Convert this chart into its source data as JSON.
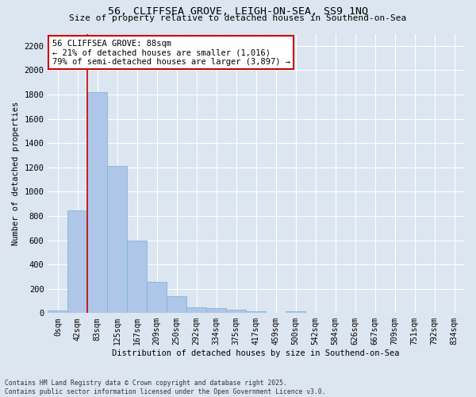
{
  "title_line1": "56, CLIFFSEA GROVE, LEIGH-ON-SEA, SS9 1NQ",
  "title_line2": "Size of property relative to detached houses in Southend-on-Sea",
  "xlabel": "Distribution of detached houses by size in Southend-on-Sea",
  "ylabel": "Number of detached properties",
  "bar_labels": [
    "0sqm",
    "42sqm",
    "83sqm",
    "125sqm",
    "167sqm",
    "209sqm",
    "250sqm",
    "292sqm",
    "334sqm",
    "375sqm",
    "417sqm",
    "459sqm",
    "500sqm",
    "542sqm",
    "584sqm",
    "626sqm",
    "667sqm",
    "709sqm",
    "751sqm",
    "792sqm",
    "834sqm"
  ],
  "bar_values": [
    20,
    845,
    1820,
    1210,
    600,
    255,
    140,
    45,
    40,
    28,
    18,
    0,
    15,
    0,
    0,
    0,
    0,
    0,
    0,
    0,
    0
  ],
  "bar_color": "#aec6e8",
  "bar_edge_color": "#7aafd4",
  "background_color": "#dce6f0",
  "grid_color": "#ffffff",
  "vline_color": "#cc0000",
  "vline_x_index": 2,
  "annotation_text": "56 CLIFFSEA GROVE: 88sqm\n← 21% of detached houses are smaller (1,016)\n79% of semi-detached houses are larger (3,897) →",
  "annotation_box_facecolor": "#ffffff",
  "annotation_box_edgecolor": "#cc0000",
  "ylim": [
    0,
    2300
  ],
  "yticks": [
    0,
    200,
    400,
    600,
    800,
    1000,
    1200,
    1400,
    1600,
    1800,
    2000,
    2200
  ],
  "footer_line1": "Contains HM Land Registry data © Crown copyright and database right 2025.",
  "footer_line2": "Contains public sector information licensed under the Open Government Licence v3.0.",
  "figsize": [
    6.0,
    5.0
  ],
  "dpi": 100
}
